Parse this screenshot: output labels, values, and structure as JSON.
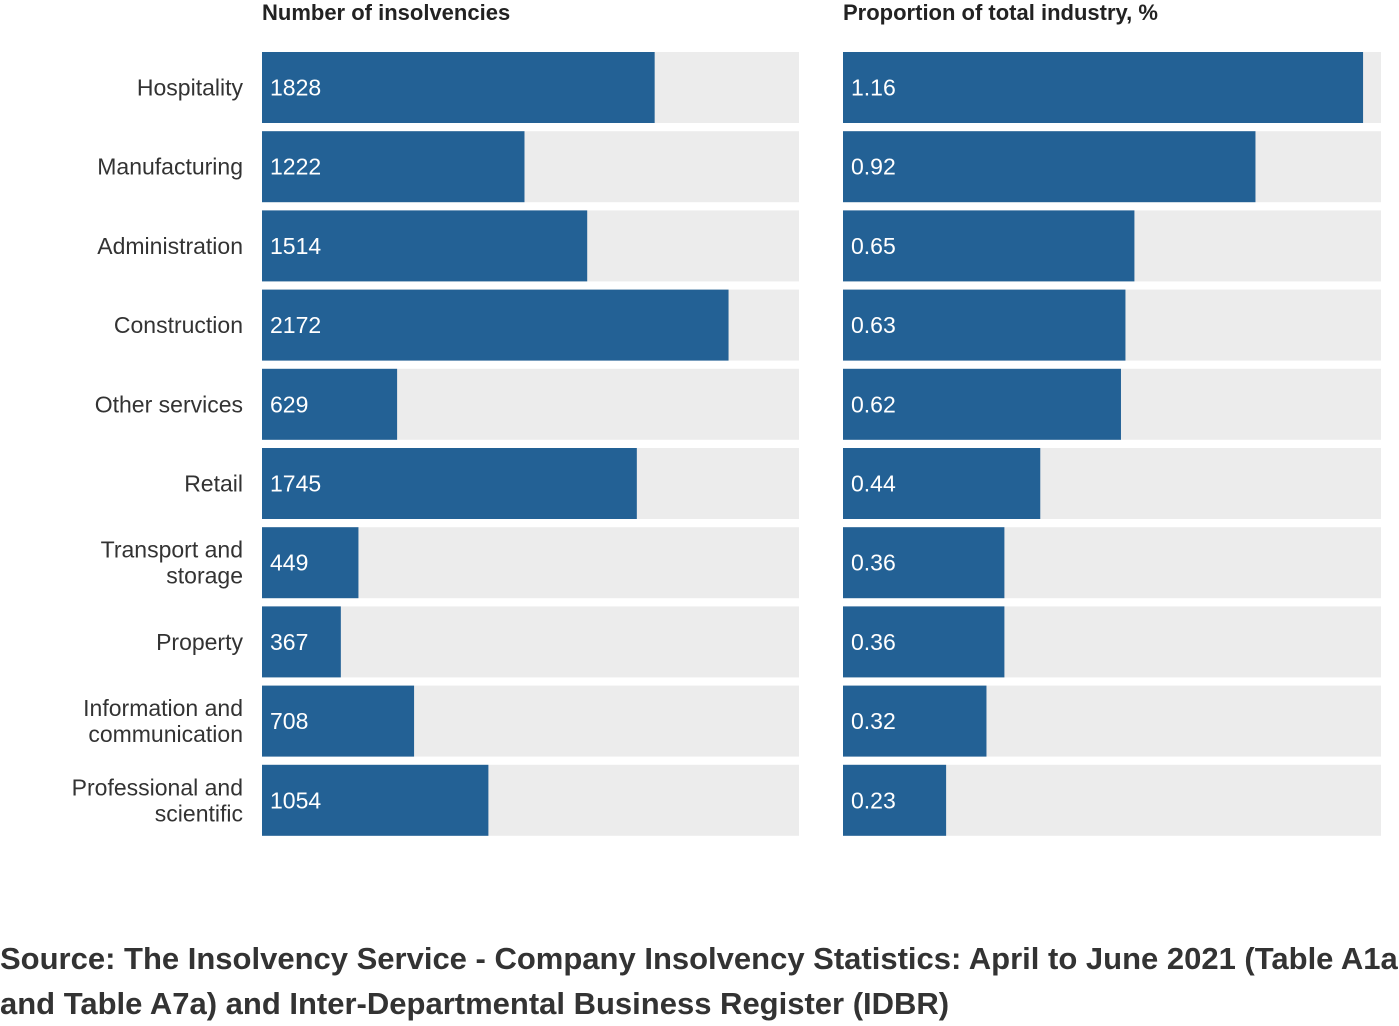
{
  "source_note": "Source: The Insolvency Service - Company Insolvency Statistics: April to June 2021 (Table A1a and Table A7a) and Inter-Departmental Business Register (IDBR)",
  "colors": {
    "bar": "#236195",
    "track": "#ececec"
  },
  "chart_data": [
    {
      "type": "bar",
      "orientation": "horizontal",
      "title": "Number of insolvencies",
      "categories": [
        [
          "Hospitality"
        ],
        [
          "Manufacturing"
        ],
        [
          "Administration"
        ],
        [
          "Construction"
        ],
        [
          "Other services"
        ],
        [
          "Retail"
        ],
        [
          "Transport and",
          "storage"
        ],
        [
          "Property"
        ],
        [
          "Information and",
          "communication"
        ],
        [
          "Professional and",
          "scientific"
        ]
      ],
      "values": [
        1828,
        1222,
        1514,
        2172,
        629,
        1745,
        449,
        367,
        708,
        1054
      ],
      "value_labels": [
        "1828",
        "1222",
        "1514",
        "2172",
        "629",
        "1745",
        "449",
        "367",
        "708",
        "1054"
      ],
      "xlim": [
        0,
        2500
      ],
      "grid": false
    },
    {
      "type": "bar",
      "orientation": "horizontal",
      "title": "Proportion of total industry, %",
      "categories": [
        [
          "Hospitality"
        ],
        [
          "Manufacturing"
        ],
        [
          "Administration"
        ],
        [
          "Construction"
        ],
        [
          "Other services"
        ],
        [
          "Retail"
        ],
        [
          "Transport and",
          "storage"
        ],
        [
          "Property"
        ],
        [
          "Information and",
          "communication"
        ],
        [
          "Professional and",
          "scientific"
        ]
      ],
      "values": [
        1.16,
        0.92,
        0.65,
        0.63,
        0.62,
        0.44,
        0.36,
        0.36,
        0.32,
        0.23
      ],
      "value_labels": [
        "1.16",
        "0.92",
        "0.65",
        "0.63",
        "0.62",
        "0.44",
        "0.36",
        "0.36",
        "0.32",
        "0.23"
      ],
      "xlim": [
        0,
        1.2
      ],
      "grid": false
    }
  ]
}
